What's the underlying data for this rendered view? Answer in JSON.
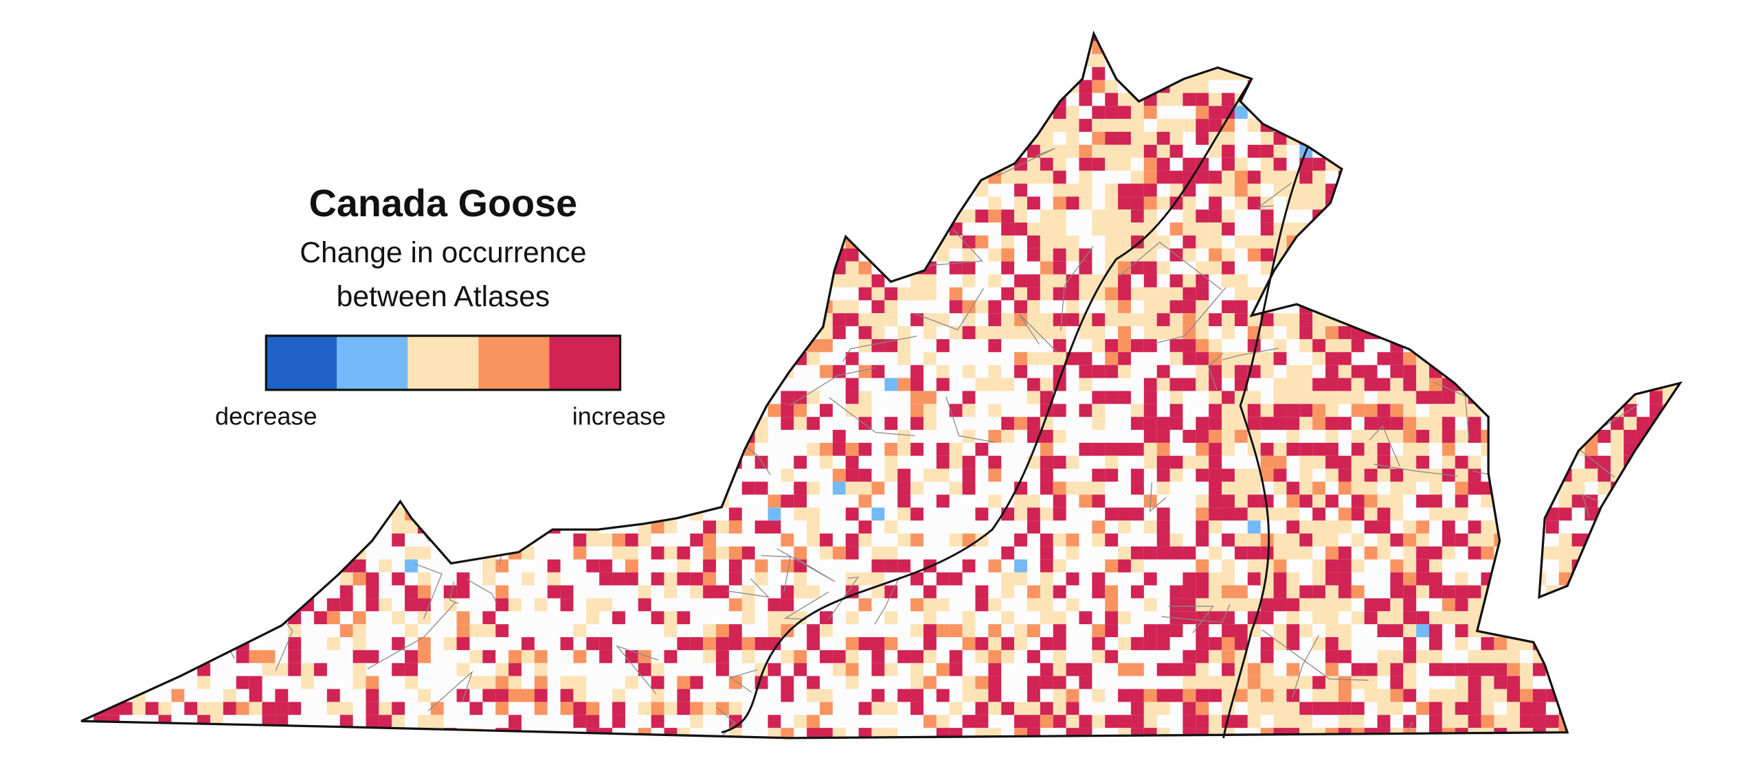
{
  "title": "Canada Goose",
  "subtitle": [
    "Change in occurrence",
    "between Atlases"
  ],
  "legend": {
    "colors": [
      "#1f63c8",
      "#74b9f7",
      "#fde3b6",
      "#f99461",
      "#d12354"
    ],
    "low_label": "decrease",
    "high_label": "increase"
  }
}
